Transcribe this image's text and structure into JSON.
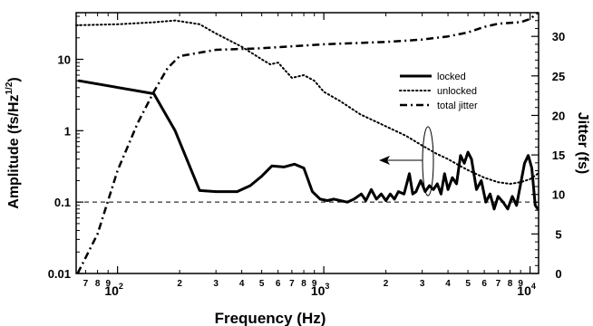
{
  "chart_data": {
    "type": "line",
    "xlabel": "Frequency (Hz)",
    "ylabel_left": "Amplitude (fs/Hz",
    "ylabel_left_sup": "1/2",
    "ylabel_left_close": ")",
    "ylabel_right": "Jitter (fs)",
    "x_scale": "log",
    "xlim": [
      63,
      11000
    ],
    "y_left_scale": "log",
    "y_left_lim": [
      0.01,
      45
    ],
    "y_right_lim": [
      0,
      33
    ],
    "x_major_ticks": [
      {
        "value": 100,
        "base": "10",
        "exp": "2"
      },
      {
        "value": 1000,
        "base": "10",
        "exp": "3"
      },
      {
        "value": 10000,
        "base": "10",
        "exp": "4"
      }
    ],
    "x_minor_ticks": [
      {
        "value": 70,
        "label": "7"
      },
      {
        "value": 80,
        "label": "8"
      },
      {
        "value": 90,
        "label": "9"
      },
      {
        "value": 200,
        "label": "2"
      },
      {
        "value": 300,
        "label": "3"
      },
      {
        "value": 400,
        "label": "4"
      },
      {
        "value": 500,
        "label": "5"
      },
      {
        "value": 600,
        "label": "6"
      },
      {
        "value": 700,
        "label": "7"
      },
      {
        "value": 800,
        "label": "8"
      },
      {
        "value": 900,
        "label": "9"
      },
      {
        "value": 2000,
        "label": "2"
      },
      {
        "value": 3000,
        "label": "3"
      },
      {
        "value": 4000,
        "label": "4"
      },
      {
        "value": 5000,
        "label": "5"
      },
      {
        "value": 6000,
        "label": "6"
      },
      {
        "value": 7000,
        "label": "7"
      },
      {
        "value": 8000,
        "label": "8"
      },
      {
        "value": 9000,
        "label": "9"
      }
    ],
    "y_left_ticks": [
      {
        "value": 0.01,
        "label": "0.01"
      },
      {
        "value": 0.1,
        "label": "0.1"
      },
      {
        "value": 1,
        "label": "1"
      },
      {
        "value": 10,
        "label": "10"
      }
    ],
    "y_right_ticks": [
      {
        "value": 0,
        "label": "0"
      },
      {
        "value": 5,
        "label": "5"
      },
      {
        "value": 10,
        "label": "10"
      },
      {
        "value": 15,
        "label": "15"
      },
      {
        "value": 20,
        "label": "20"
      },
      {
        "value": 25,
        "label": "25"
      },
      {
        "value": 30,
        "label": "30"
      }
    ],
    "reference_line": {
      "axis": "left",
      "value": 0.1,
      "style": "dashed"
    },
    "legend_position": "right-center",
    "series": [
      {
        "name": "locked",
        "axis": "left",
        "style": "solid",
        "x": [
          65,
          150,
          190,
          250,
          300,
          380,
          440,
          500,
          560,
          640,
          720,
          800,
          880,
          960,
          1040,
          1120,
          1200,
          1300,
          1400,
          1520,
          1600,
          1700,
          1800,
          1900,
          2000,
          2100,
          2200,
          2300,
          2450,
          2600,
          2700,
          2800,
          2950,
          3100,
          3250,
          3400,
          3550,
          3700,
          3850,
          4000,
          4200,
          4400,
          4600,
          4800,
          5000,
          5200,
          5500,
          5800,
          6100,
          6400,
          6700,
          7000,
          7400,
          7800,
          8200,
          8600,
          9000,
          9400,
          9800,
          10200,
          10600,
          10900
        ],
        "y": [
          5.0,
          3.3,
          1.0,
          0.145,
          0.14,
          0.14,
          0.17,
          0.23,
          0.32,
          0.31,
          0.34,
          0.3,
          0.14,
          0.11,
          0.105,
          0.11,
          0.105,
          0.1,
          0.11,
          0.13,
          0.105,
          0.15,
          0.11,
          0.13,
          0.105,
          0.13,
          0.11,
          0.14,
          0.13,
          0.25,
          0.13,
          0.14,
          0.2,
          0.14,
          0.17,
          0.15,
          0.18,
          0.13,
          0.25,
          0.15,
          0.22,
          0.18,
          0.45,
          0.35,
          0.5,
          0.4,
          0.15,
          0.2,
          0.1,
          0.13,
          0.08,
          0.12,
          0.1,
          0.08,
          0.12,
          0.09,
          0.18,
          0.35,
          0.45,
          0.3,
          0.09,
          0.08
        ]
      },
      {
        "name": "unlocked",
        "axis": "left",
        "style": "dotted",
        "x": [
          63,
          100,
          150,
          190,
          250,
          300,
          400,
          500,
          550,
          600,
          700,
          800,
          900,
          1000,
          1200,
          1500,
          2000,
          2500,
          3000,
          3500,
          4000,
          4500,
          5000,
          6000,
          7000,
          8000,
          9000,
          10000,
          10900
        ],
        "y": [
          30,
          31,
          33,
          35,
          31,
          23,
          15,
          10,
          8.5,
          9.0,
          5.5,
          6.0,
          5.0,
          3.5,
          2.6,
          1.7,
          1.15,
          0.85,
          0.62,
          0.48,
          0.4,
          0.33,
          0.28,
          0.22,
          0.19,
          0.18,
          0.19,
          0.21,
          0.25
        ]
      },
      {
        "name": "total jitter",
        "axis": "right",
        "style": "dash-dot",
        "x": [
          64,
          80,
          100,
          125,
          150,
          175,
          200,
          300,
          500,
          1000,
          2000,
          3000,
          4000,
          5000,
          6000,
          7000,
          8000,
          9000,
          10000,
          10900
        ],
        "y": [
          0,
          5,
          13,
          19,
          23,
          26,
          27.5,
          28.3,
          28.5,
          29,
          29.3,
          29.6,
          30,
          30.5,
          31.2,
          31.6,
          31.7,
          31.8,
          32.2,
          33
        ]
      }
    ]
  }
}
